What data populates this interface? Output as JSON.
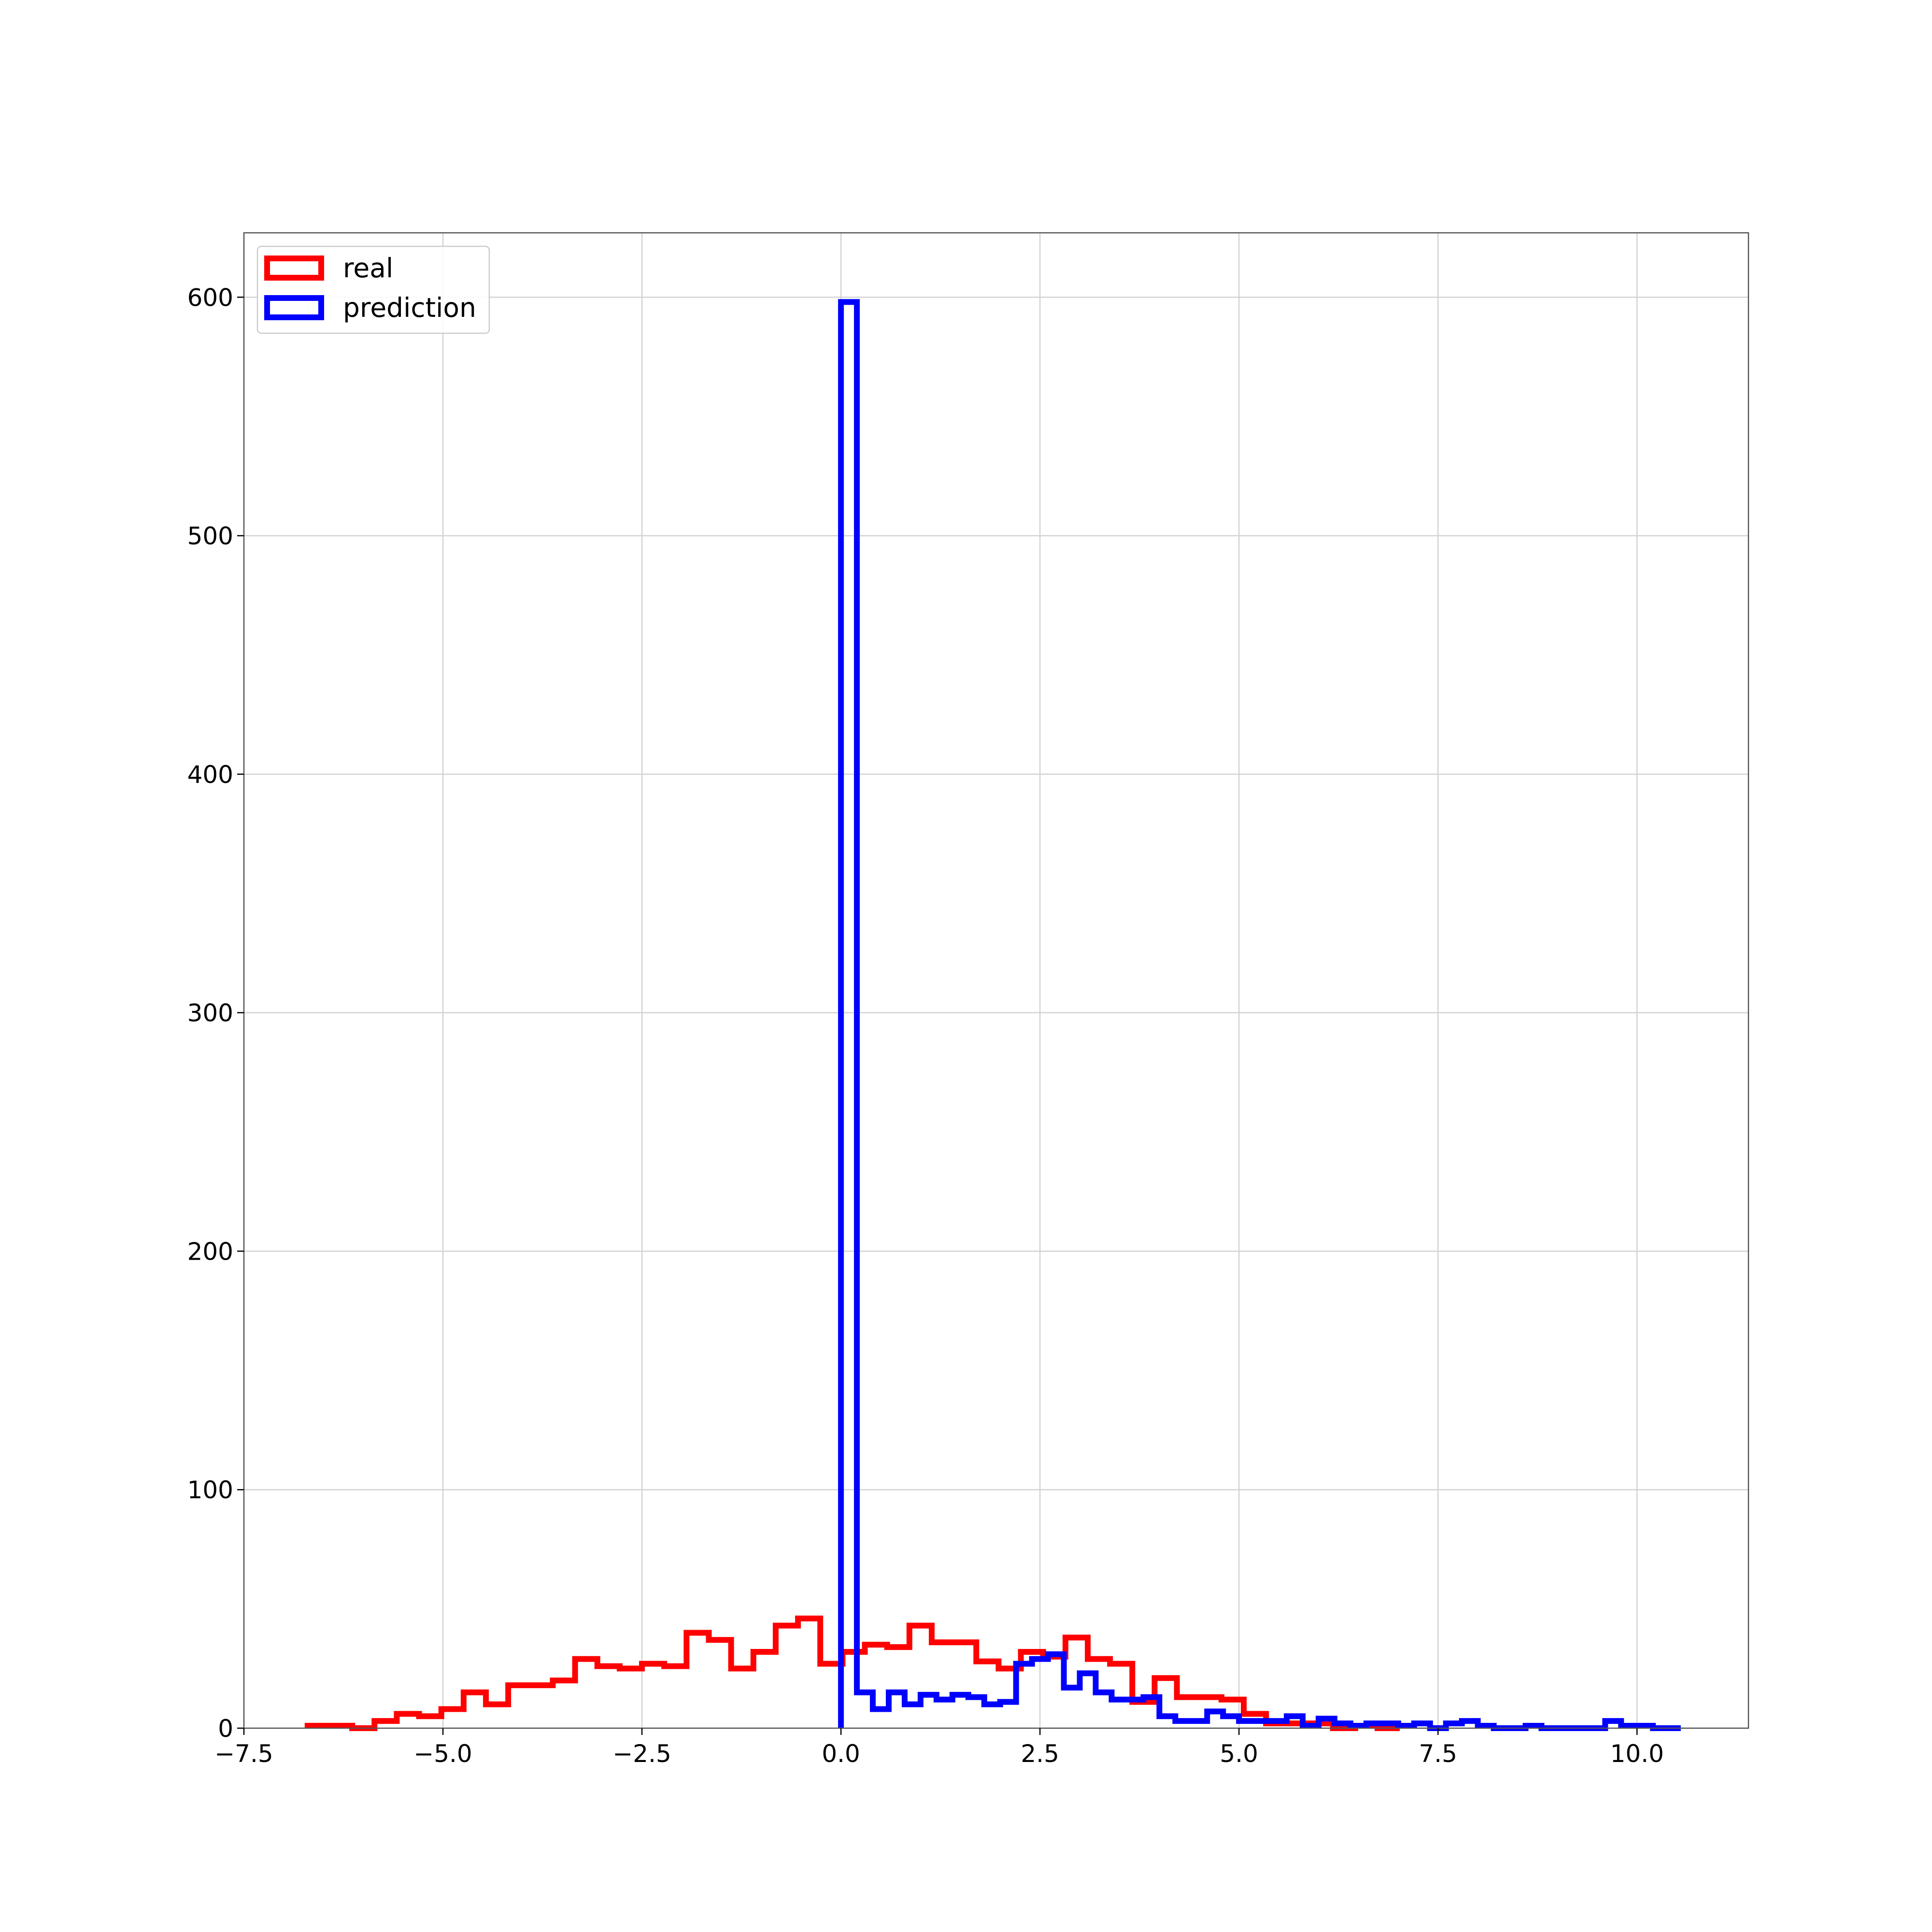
{
  "chart_data": {
    "type": "histogram",
    "title": "",
    "xlabel": "",
    "ylabel": "",
    "xlim": [
      -7.5,
      11.4
    ],
    "ylim": [
      0,
      627
    ],
    "xticks": [
      -7.5,
      -5.0,
      -2.5,
      0.0,
      2.5,
      5.0,
      7.5,
      10.0
    ],
    "xtick_labels": [
      "−7.5",
      "−5.0",
      "−2.5",
      "0.0",
      "2.5",
      "5.0",
      "7.5",
      "10.0"
    ],
    "yticks": [
      0,
      100,
      200,
      300,
      400,
      500,
      600
    ],
    "ytick_labels": [
      "0",
      "100",
      "200",
      "300",
      "400",
      "500",
      "600"
    ],
    "grid": true,
    "legend_position": "top-left",
    "series": [
      {
        "name": "real",
        "color": "#ff0000",
        "bin_edges": [
          -6.7,
          -6.42,
          -6.14,
          -5.86,
          -5.58,
          -5.3,
          -5.02,
          -4.74,
          -4.46,
          -4.18,
          -3.9,
          -3.62,
          -3.34,
          -3.06,
          -2.78,
          -2.5,
          -2.22,
          -1.94,
          -1.66,
          -1.38,
          -1.1,
          -0.82,
          -0.54,
          -0.26,
          0.02,
          0.3,
          0.58,
          0.86,
          1.14,
          1.42,
          1.7,
          1.98,
          2.26,
          2.54,
          2.82,
          3.1,
          3.38,
          3.66,
          3.94,
          4.22,
          4.5,
          4.78,
          5.06,
          5.34,
          5.62,
          5.9,
          6.18,
          6.46,
          6.74,
          7.02
        ],
        "counts": [
          1,
          1,
          0,
          3,
          6,
          5,
          8,
          15,
          10,
          18,
          18,
          20,
          29,
          26,
          25,
          27,
          26,
          40,
          37,
          25,
          32,
          43,
          46,
          27,
          32,
          35,
          34,
          43,
          36,
          36,
          28,
          25,
          32,
          30,
          38,
          29,
          27,
          11,
          21,
          13,
          13,
          12,
          6,
          2,
          2,
          2,
          0,
          1,
          0
        ]
      },
      {
        "name": "prediction",
        "color": "#0000ff",
        "bin_edges": [
          0.0,
          0.2,
          0.4,
          0.6,
          0.8,
          1.0,
          1.2,
          1.4,
          1.6,
          1.8,
          2.0,
          2.2,
          2.4,
          2.6,
          2.8,
          3.0,
          3.2,
          3.4,
          3.6,
          3.8,
          4.0,
          4.2,
          4.4,
          4.6,
          4.8,
          5.0,
          5.2,
          5.4,
          5.6,
          5.8,
          6.0,
          6.2,
          6.4,
          6.6,
          6.8,
          7.0,
          7.2,
          7.4,
          7.6,
          7.8,
          8.0,
          8.2,
          8.4,
          8.6,
          8.8,
          9.0,
          9.2,
          9.4,
          9.6,
          9.8,
          10.0,
          10.2,
          10.4,
          10.55
        ],
        "counts": [
          598,
          15,
          8,
          15,
          10,
          14,
          12,
          14,
          13,
          10,
          11,
          27,
          29,
          31,
          17,
          23,
          15,
          12,
          12,
          13,
          5,
          3,
          3,
          7,
          5,
          3,
          3,
          3,
          5,
          1,
          4,
          2,
          1,
          2,
          2,
          1,
          2,
          0,
          2,
          3,
          1,
          0,
          0,
          1,
          0,
          0,
          0,
          0,
          3,
          1,
          1,
          0,
          0
        ]
      }
    ]
  }
}
